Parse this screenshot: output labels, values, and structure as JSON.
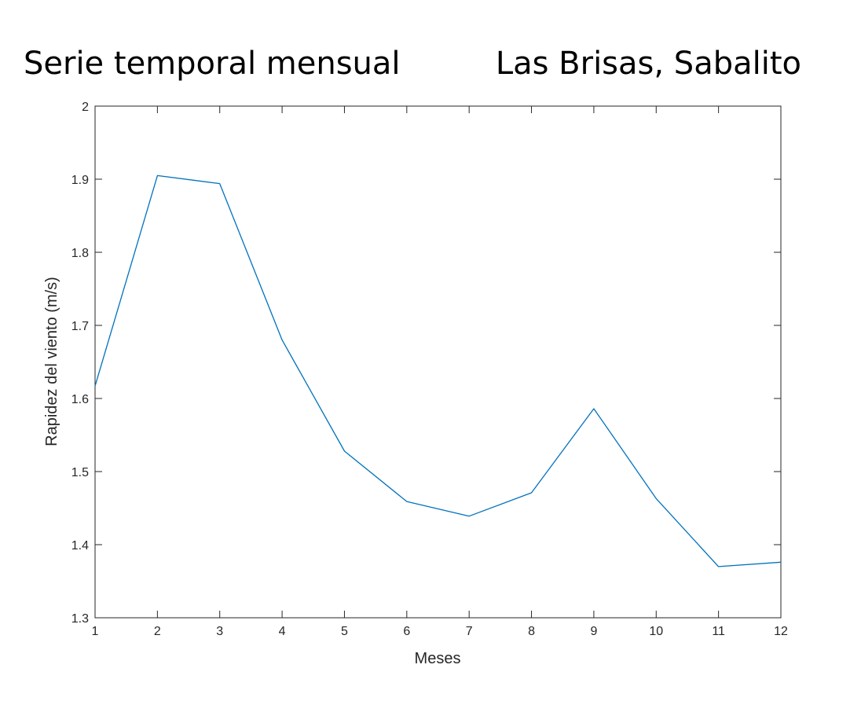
{
  "chart_data": {
    "type": "line",
    "title": "Serie temporal mensual",
    "subtitle": "Las Brisas, Sabalito",
    "xlabel": "Meses",
    "ylabel": "Rapidez del viento (m/s)",
    "xlim": [
      1,
      12
    ],
    "ylim": [
      1.3,
      2
    ],
    "xticks": [
      1,
      2,
      3,
      4,
      5,
      6,
      7,
      8,
      9,
      10,
      11,
      12
    ],
    "yticks": [
      1.3,
      1.4,
      1.5,
      1.6,
      1.7,
      1.8,
      1.9,
      2
    ],
    "ytick_labels": [
      "1.3",
      "1.4",
      "1.5",
      "1.6",
      "1.7",
      "1.8",
      "1.9",
      "2"
    ],
    "grid": false,
    "line_color": "#0072BD",
    "series": [
      {
        "x": [
          1,
          2,
          3,
          4,
          5,
          6,
          7,
          8,
          9,
          10,
          11,
          12
        ],
        "values": [
          1.617,
          1.905,
          1.894,
          1.68,
          1.528,
          1.459,
          1.439,
          1.471,
          1.586,
          1.463,
          1.37,
          1.376
        ]
      }
    ]
  }
}
